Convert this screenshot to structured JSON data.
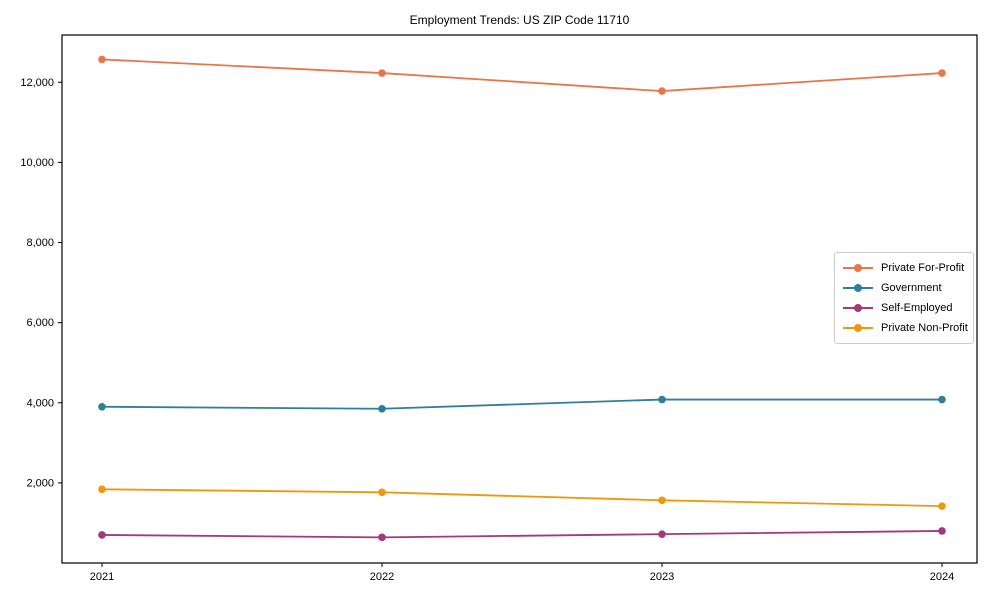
{
  "figure": {
    "title": "Employment Trends: US ZIP Code 11710",
    "background_color": "#ffffff",
    "axis_color": "#000000",
    "legend_border_color": "#cccccc"
  },
  "chart_data": {
    "type": "line",
    "title": "Employment Trends: US ZIP Code 11710",
    "xlabel": "",
    "ylabel": "",
    "categories": [
      "2021",
      "2022",
      "2023",
      "2024"
    ],
    "series": [
      {
        "name": "Private For-Profit",
        "color": "#E8764B",
        "values": [
          12570,
          12230,
          11780,
          12230
        ]
      },
      {
        "name": "Government",
        "color": "#2E7F9C",
        "values": [
          3900,
          3850,
          4080,
          4080
        ]
      },
      {
        "name": "Self-Employed",
        "color": "#A2387D",
        "values": [
          700,
          640,
          720,
          800
        ]
      },
      {
        "name": "Private Non-Profit",
        "color": "#F0980A",
        "values": [
          1840,
          1765,
          1565,
          1420
        ]
      }
    ],
    "ylim": [
      0,
      13180
    ],
    "yticks": [
      2000,
      4000,
      6000,
      8000,
      10000,
      12000
    ],
    "ytick_labels": [
      "2,000",
      "4,000",
      "6,000",
      "8,000",
      "10,000",
      "12,000"
    ],
    "grid": false,
    "legend_position": "right-middle",
    "marker": "circle"
  }
}
